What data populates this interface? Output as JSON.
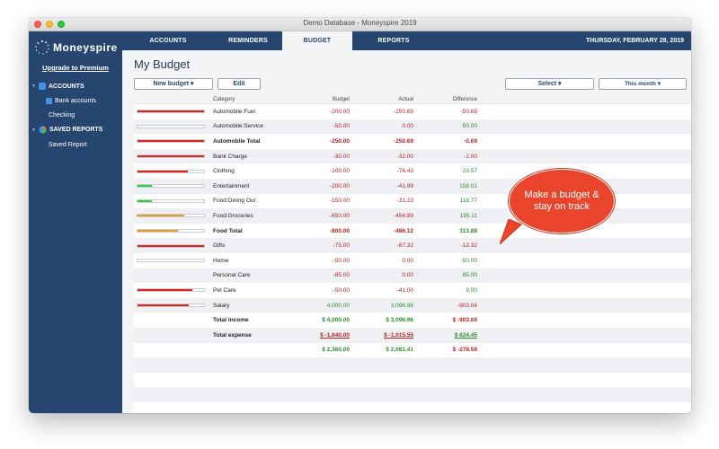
{
  "window": {
    "title": "Demo Database - Moneyspire 2019"
  },
  "sidebar": {
    "logo": "Moneyspire",
    "upgrade": "Upgrade to Premium",
    "sections": [
      {
        "label": "ACCOUNTS",
        "color": "#4a90e2"
      },
      {
        "label": "SAVED REPORTS",
        "color": "#e07b39"
      }
    ],
    "items": {
      "bank_accounts": "Bank accounts",
      "checking": "Checking",
      "saved_report": "Saved Report"
    }
  },
  "nav": {
    "tabs": [
      "ACCOUNTS",
      "REMINDERS",
      "BUDGET",
      "REPORTS"
    ],
    "active": "BUDGET",
    "date": "THURSDAY, FEBRUARY 28, 2019"
  },
  "page": {
    "title": "My Budget",
    "buttons": {
      "new_budget": "New budget ▾",
      "edit": "Edit",
      "select": "Select ▾",
      "period": "This month ▾"
    }
  },
  "table": {
    "headers": {
      "category": "Category",
      "budget": "Budget",
      "actual": "Actual",
      "difference": "Difference"
    },
    "rows": [
      {
        "category": "Automobile:Fuel",
        "budget": "-200.00",
        "actual": "-250.69",
        "difference": "-50.69",
        "bar": 1.0,
        "bar_color": "#d9261c",
        "style": "normal",
        "diff_tone": "neg",
        "num_tone": "neg"
      },
      {
        "category": "Automobile:Service",
        "budget": "-50.00",
        "actual": "0.00",
        "difference": "50.00",
        "bar": 0.0,
        "bar_color": "#d9261c",
        "style": "normal",
        "diff_tone": "pos",
        "num_tone": "neg"
      },
      {
        "category": "Automobile Total",
        "budget": "-250.00",
        "actual": "-250.69",
        "difference": "-0.69",
        "bar": 1.0,
        "bar_color": "#d9261c",
        "style": "bold",
        "diff_tone": "neg",
        "num_tone": "neg"
      },
      {
        "category": "Bank Charge",
        "budget": "-30.00",
        "actual": "-32.00",
        "difference": "-2.00",
        "bar": 1.0,
        "bar_color": "#d9261c",
        "style": "normal",
        "diff_tone": "neg",
        "num_tone": "neg"
      },
      {
        "category": "Clothing",
        "budget": "-100.00",
        "actual": "-76.43",
        "difference": "23.57",
        "bar": 0.76,
        "bar_color": "#d9261c",
        "style": "normal",
        "diff_tone": "pos",
        "num_tone": "neg"
      },
      {
        "category": "Entertainment",
        "budget": "-200.00",
        "actual": "-41.99",
        "difference": "158.01",
        "bar": 0.21,
        "bar_color": "#2ecc40",
        "style": "normal",
        "diff_tone": "pos",
        "num_tone": "neg"
      },
      {
        "category": "Food:Dining Out",
        "budget": "-150.00",
        "actual": "-31.23",
        "difference": "118.77",
        "bar": 0.21,
        "bar_color": "#2ecc40",
        "style": "normal",
        "diff_tone": "pos",
        "num_tone": "neg"
      },
      {
        "category": "Food:Groceries",
        "budget": "-650.00",
        "actual": "-454.89",
        "difference": "195.11",
        "bar": 0.7,
        "bar_color": "#e89a2a",
        "style": "normal",
        "diff_tone": "pos",
        "num_tone": "neg"
      },
      {
        "category": "Food Total",
        "budget": "-800.00",
        "actual": "-486.12",
        "difference": "313.88",
        "bar": 0.61,
        "bar_color": "#e89a2a",
        "style": "bold",
        "diff_tone": "pos",
        "num_tone": "neg"
      },
      {
        "category": "Gifts",
        "budget": "-75.00",
        "actual": "-87.32",
        "difference": "-12.32",
        "bar": 1.0,
        "bar_color": "#d9261c",
        "style": "normal",
        "diff_tone": "neg",
        "num_tone": "neg"
      },
      {
        "category": "Home",
        "budget": "-50.00",
        "actual": "0.00",
        "difference": "50.00",
        "bar": 0.0,
        "bar_color": "#d9261c",
        "style": "normal",
        "diff_tone": "pos",
        "num_tone": "neg"
      },
      {
        "category": "Personal Care",
        "budget": "-85.00",
        "actual": "0.00",
        "difference": "85.00",
        "bar": null,
        "bar_color": "#d9261c",
        "style": "normal",
        "diff_tone": "pos",
        "num_tone": "neg"
      },
      {
        "category": "Pet Care",
        "budget": "-50.00",
        "actual": "-41.00",
        "difference": "9.00",
        "bar": 0.82,
        "bar_color": "#d9261c",
        "style": "normal",
        "diff_tone": "pos",
        "num_tone": "neg"
      },
      {
        "category": "Salary",
        "budget": "4,000.00",
        "actual": "3,096.96",
        "difference": "-903.04",
        "bar": 0.77,
        "bar_color": "#d9261c",
        "style": "normal",
        "diff_tone": "neg",
        "num_tone": "pos"
      },
      {
        "category": "Total income",
        "budget": "$ 4,000.00",
        "actual": "$ 3,096.96",
        "difference": "$ -903.04",
        "bar": null,
        "bar_color": "",
        "style": "bold",
        "diff_tone": "neg",
        "num_tone": "pos"
      },
      {
        "category": "Total expense",
        "budget": "$ -1,640.00",
        "actual": "$ -1,015.55",
        "difference": "$ 624.45",
        "bar": null,
        "bar_color": "",
        "style": "bold-uline",
        "diff_tone": "pos",
        "num_tone": "neg"
      },
      {
        "category": "",
        "budget": "$ 2,360.00",
        "actual": "$ 2,081.41",
        "difference": "$ -278.59",
        "bar": null,
        "bar_color": "",
        "style": "bold",
        "diff_tone": "neg",
        "num_tone": "pos"
      },
      {
        "category": "",
        "budget": "",
        "actual": "",
        "difference": "",
        "bar": null,
        "bar_color": "",
        "style": "normal",
        "diff_tone": "",
        "num_tone": ""
      },
      {
        "category": "",
        "budget": "",
        "actual": "",
        "difference": "",
        "bar": null,
        "bar_color": "",
        "style": "normal",
        "diff_tone": "",
        "num_tone": ""
      },
      {
        "category": "",
        "budget": "",
        "actual": "",
        "difference": "",
        "bar": null,
        "bar_color": "",
        "style": "normal",
        "diff_tone": "",
        "num_tone": ""
      },
      {
        "category": "",
        "budget": "",
        "actual": "",
        "difference": "",
        "bar": null,
        "bar_color": "",
        "style": "normal",
        "diff_tone": "",
        "num_tone": ""
      }
    ]
  },
  "callout": {
    "text": "Make a budget & stay on track",
    "color": "#e8452c"
  }
}
